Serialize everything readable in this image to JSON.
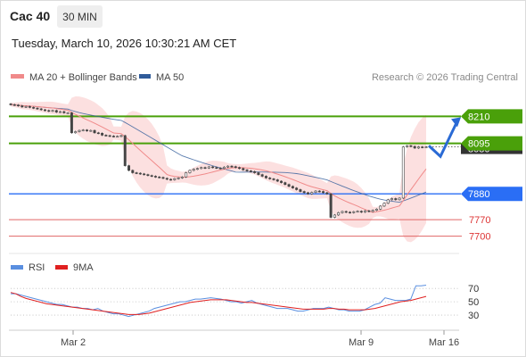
{
  "header": {
    "symbol": "Cac 40",
    "timeframe": "30 MIN",
    "timestamp": "Tuesday, March 10, 2026 10:30:21 AM CET"
  },
  "legend": {
    "ma20_label": "MA 20 + Bollinger Bands",
    "ma50_label": "MA 50",
    "copyright": "Research © 2026 Trading Central",
    "rsi_label": "RSI",
    "rsi_ma_label": "9MA"
  },
  "colors": {
    "ma20": "#f08a8a",
    "ma50": "#2f5b9a",
    "bollinger_fill": "#fbd5d5",
    "resistance": "#4aa00a",
    "pivot": "#2a6ef5",
    "support": "#e06666",
    "rsi": "#5a8fe0",
    "rsi_ma": "#e02020",
    "candle": "#444444",
    "arrow": "#2a6ad5"
  },
  "icons": {
    "projection": "zigzag-arrow-icon"
  },
  "chart_data": [
    {
      "type": "candlestick",
      "title": "",
      "x_ticks": [
        "Mar 2",
        "Mar 9",
        "Mar 16"
      ],
      "ylim": [
        7668,
        8295
      ],
      "levels": {
        "resistance": [
          8210,
          8095
        ],
        "pivot": 7880,
        "support": [
          7770,
          7700
        ]
      },
      "last_price_label": "8080",
      "close": [
        8260,
        8258,
        8255,
        8250,
        8252,
        8248,
        8245,
        8242,
        8238,
        8235,
        8232,
        8235,
        8228,
        8230,
        8225,
        8225,
        8140,
        8145,
        8150,
        8152,
        8148,
        8150,
        8140,
        8138,
        8130,
        8128,
        8126,
        8124,
        8125,
        8128,
        8000,
        7980,
        7970,
        7968,
        7965,
        7962,
        7958,
        7955,
        7952,
        7950,
        7946,
        7942,
        7940,
        7945,
        7948,
        7952,
        7970,
        7980,
        7985,
        7988,
        7992,
        7990,
        7995,
        7992,
        7990,
        7988,
        7994,
        7998,
        7996,
        7992,
        7988,
        7982,
        7978,
        7975,
        7970,
        7962,
        7955,
        7948,
        7944,
        7940,
        7934,
        7928,
        7920,
        7912,
        7905,
        7898,
        7890,
        7885,
        7880,
        7886,
        7892,
        7890,
        7885,
        7880,
        7780,
        7790,
        7800,
        7805,
        7802,
        7800,
        7804,
        7806,
        7802,
        7808,
        7805,
        7810,
        7815,
        7828,
        7840,
        7855,
        7860,
        7855,
        7862,
        8080,
        8085,
        8082,
        8075,
        8080,
        8078,
        8080
      ]
    },
    {
      "type": "line",
      "title": "",
      "ylim": [
        10,
        85
      ],
      "y_ticks": [
        70,
        50,
        30
      ],
      "series": [
        {
          "name": "RSI",
          "values": [
            62,
            62,
            60,
            58,
            56,
            54,
            52,
            50,
            48,
            46,
            46,
            44,
            42,
            42,
            40,
            40,
            38,
            40,
            36,
            34,
            32,
            32,
            30,
            28,
            30,
            32,
            34,
            36,
            40,
            42,
            44,
            46,
            48,
            50,
            50,
            52,
            54,
            54,
            55,
            56,
            55,
            54,
            52,
            50,
            50,
            48,
            50,
            52,
            48,
            46,
            44,
            42,
            40,
            40,
            40,
            38,
            36,
            36,
            38,
            40,
            40,
            40,
            42,
            40,
            38,
            38,
            36,
            36,
            36,
            38,
            42,
            46,
            48,
            56,
            54,
            52,
            52,
            52,
            54,
            74,
            74,
            75
          ]
        },
        {
          "name": "9MA",
          "values": [
            64,
            62,
            58,
            55,
            53,
            51,
            49,
            47,
            46,
            45,
            44,
            43,
            42,
            41,
            40,
            39,
            38,
            37,
            36,
            35,
            34,
            33,
            32,
            31,
            31,
            31,
            32,
            33,
            35,
            37,
            39,
            41,
            43,
            45,
            47,
            49,
            50,
            51,
            52,
            53,
            53,
            53,
            53,
            52,
            51,
            50,
            49,
            49,
            48,
            47,
            46,
            45,
            44,
            43,
            42,
            41,
            40,
            39,
            39,
            39,
            39,
            39,
            40,
            40,
            39,
            39,
            38,
            38,
            38,
            38,
            39,
            40,
            42,
            44,
            46,
            48,
            50,
            51,
            52,
            54,
            56,
            58
          ]
        }
      ]
    }
  ]
}
